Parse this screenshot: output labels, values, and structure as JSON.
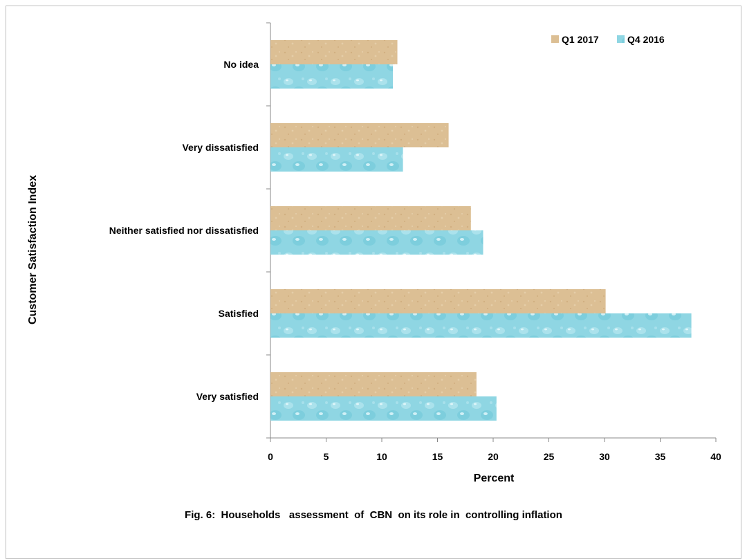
{
  "caption": "Fig. 6:  Households   assessment  of  CBN  on its role in  controlling inflation",
  "chart_data": {
    "type": "bar",
    "orientation": "horizontal",
    "categories": [
      "Very satisfied",
      "Satisfied",
      "Neither satisfied nor dissatisfied",
      "Very dissatisfied",
      "No idea"
    ],
    "series": [
      {
        "name": "Q1 2017",
        "values": [
          18.5,
          30.1,
          18.0,
          16.0,
          11.4
        ],
        "color": "#d8b88a"
      },
      {
        "name": "Q4 2016",
        "values": [
          20.3,
          37.8,
          19.1,
          11.9,
          11.0
        ],
        "color": "#8fd3e0"
      }
    ],
    "xlabel": "Percent",
    "ylabel": "Customer  Satisfaction Index",
    "xlim": [
      0,
      40
    ],
    "xticks": [
      "0",
      "5",
      "10",
      "15",
      "20",
      "25",
      "30",
      "35",
      "40"
    ],
    "legend_position": "top-right",
    "grid": false
  }
}
